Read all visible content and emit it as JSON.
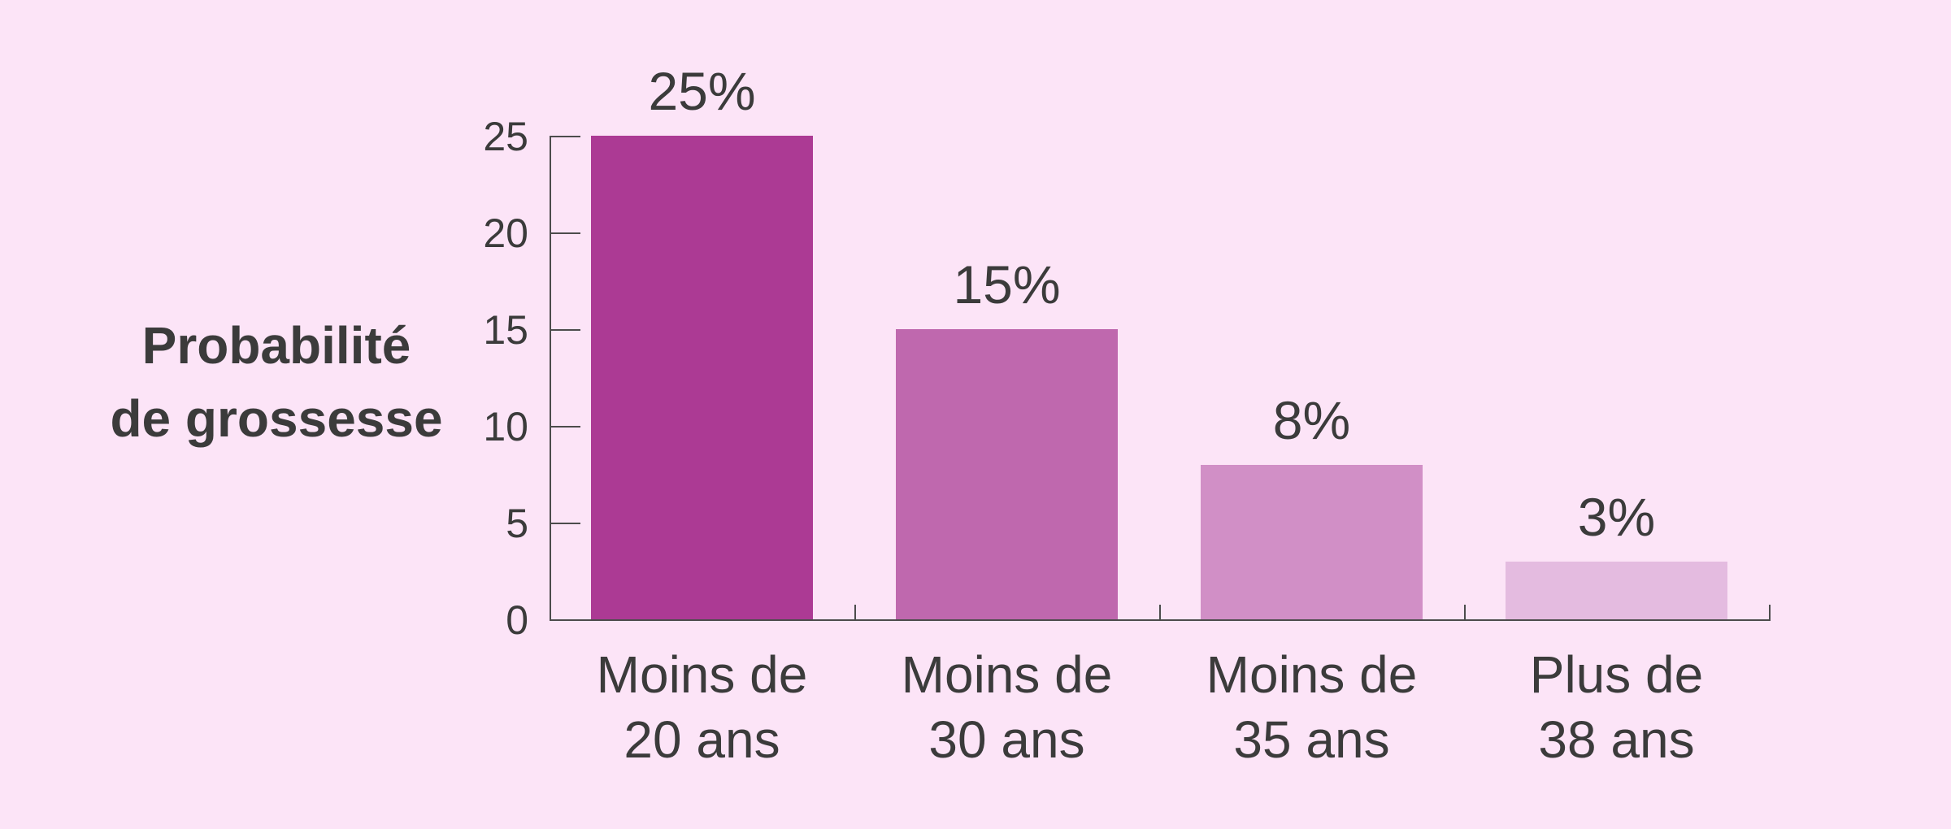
{
  "chart_data": {
    "type": "bar",
    "title": "",
    "ylabel": "Probabilité de grossesse",
    "ylabel_lines": [
      "Probabilité",
      "de grossesse"
    ],
    "xlabel": "",
    "categories": [
      "Moins de 20 ans",
      "Moins de 30 ans",
      "Moins de 35 ans",
      "Plus de 38 ans"
    ],
    "category_lines": [
      [
        "Moins de",
        "20 ans"
      ],
      [
        "Moins de",
        "30 ans"
      ],
      [
        "Moins de",
        "35 ans"
      ],
      [
        "Plus de",
        "38 ans"
      ]
    ],
    "values": [
      25,
      15,
      8,
      3
    ],
    "value_labels": [
      "25%",
      "15%",
      "8%",
      "3%"
    ],
    "ylim": [
      0,
      25
    ],
    "yticks": [
      0,
      5,
      10,
      15,
      20,
      25
    ],
    "ytick_labels": [
      "0",
      "5",
      "10",
      "15",
      "20",
      "25"
    ],
    "grid": false,
    "legend": false,
    "colors": {
      "background": "#FCE4F7",
      "bars": [
        "#AC3A94",
        "#BF68AE",
        "#D18FC6",
        "#E4BBE0"
      ],
      "axis": "#4C4C4C",
      "text": "#3B3B3B"
    }
  }
}
